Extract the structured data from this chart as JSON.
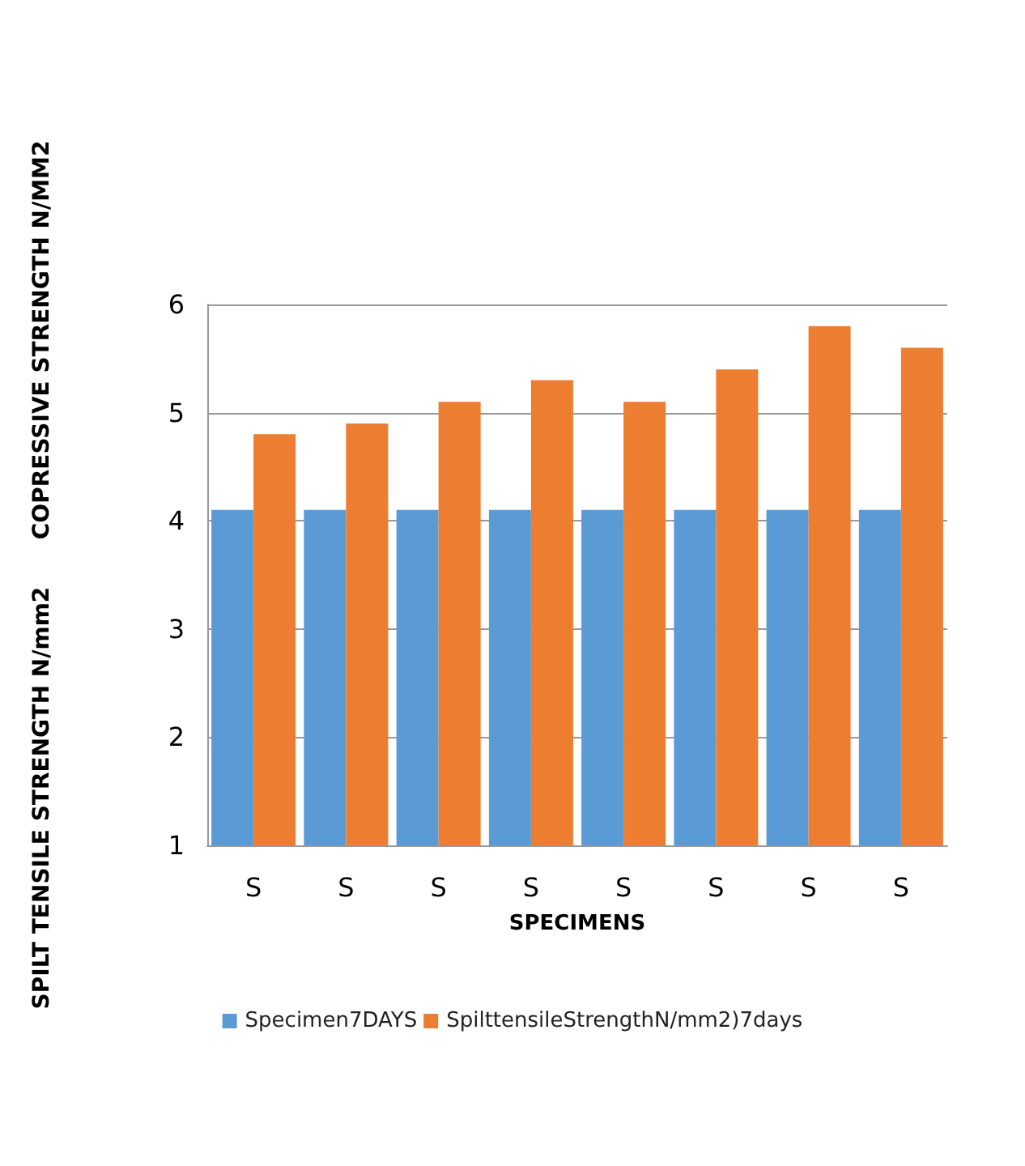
{
  "chart_data": {
    "type": "bar",
    "xlabel": "SPECIMENS",
    "ylabel": "SPILT TENSILE STRENGTH N/mm2      COPRESSIVE STRENGTH N/MM2",
    "categories": [
      "S",
      "S",
      "S",
      "S",
      "S",
      "S",
      "S",
      "S"
    ],
    "series": [
      {
        "name": "Specimen7DAYS",
        "color": "#5b9bd5",
        "values": [
          4.1,
          4.1,
          4.1,
          4.1,
          4.1,
          4.1,
          4.1,
          4.1
        ]
      },
      {
        "name": "SpilttensileStrengthN/mm2)7days",
        "color": "#ed7d31",
        "values": [
          4.8,
          4.9,
          5.1,
          5.3,
          5.1,
          5.4,
          5.8,
          5.6
        ]
      }
    ],
    "ylim": [
      1,
      6
    ],
    "yticks": [
      1,
      2,
      3,
      4,
      5,
      6
    ],
    "grid": "y",
    "legend": "bottom"
  }
}
